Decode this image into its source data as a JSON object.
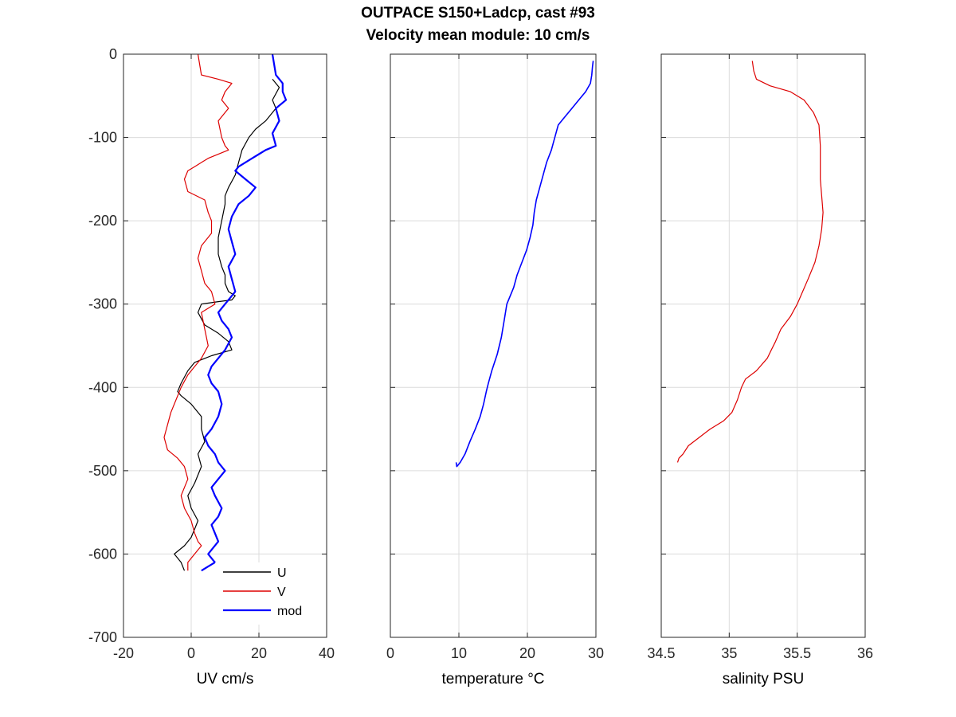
{
  "figure": {
    "title_line1": "OUTPACE S150+Ladcp, cast #93",
    "title_line2": "Velocity mean module:  10 cm/s"
  },
  "chart_data": [
    {
      "type": "line",
      "xlabel": "UV cm/s",
      "ylabel": "",
      "xlim": [
        -20,
        40
      ],
      "ylim": [
        -700,
        0
      ],
      "xticks": [
        -20,
        0,
        20,
        40
      ],
      "xtick_labels": [
        "-20",
        "0",
        "20",
        "40"
      ],
      "yticks": [
        0,
        -100,
        -200,
        -300,
        -400,
        -500,
        -600,
        -700
      ],
      "ytick_labels": [
        "0",
        "-100",
        "-200",
        "-300",
        "-400",
        "-500",
        "-600",
        "-700"
      ],
      "grid": true,
      "legend_position": "bottom-right",
      "series": [
        {
          "name": "U",
          "color": "#000000",
          "x": [
            24,
            26,
            24,
            25,
            22,
            19,
            17,
            15,
            14,
            13,
            11,
            10,
            10,
            9,
            8,
            8,
            9,
            10,
            10,
            11,
            13,
            12,
            8,
            3,
            2,
            4,
            8,
            11,
            12,
            6,
            1,
            -1,
            -3,
            -4,
            -3,
            0,
            3,
            3,
            4,
            2,
            3,
            1,
            -1,
            0,
            2,
            1,
            0,
            -2,
            -5,
            -3,
            -2
          ],
          "y": [
            -30,
            -40,
            -55,
            -65,
            -80,
            -90,
            -100,
            -115,
            -130,
            -145,
            -160,
            -170,
            -180,
            -200,
            -220,
            -240,
            -255,
            -265,
            -275,
            -285,
            -290,
            -295,
            -297,
            -300,
            -310,
            -325,
            -335,
            -345,
            -355,
            -362,
            -370,
            -380,
            -395,
            -405,
            -410,
            -420,
            -435,
            -450,
            -465,
            -480,
            -495,
            -515,
            -530,
            -545,
            -560,
            -570,
            -580,
            -590,
            -600,
            -610,
            -620
          ]
        },
        {
          "name": "V",
          "color": "#dd0000",
          "x": [
            2,
            3,
            8,
            12,
            10,
            9,
            11,
            8,
            9,
            10,
            11,
            5,
            1,
            -1,
            -2,
            -1,
            4,
            5,
            6,
            6,
            3,
            2,
            3,
            4,
            6,
            7,
            3,
            4,
            5,
            3,
            1,
            -1,
            -3,
            -6,
            -8,
            -7,
            -4,
            -2,
            -1,
            -3,
            -2,
            0,
            1,
            2,
            3,
            1,
            -1,
            -1
          ],
          "y": [
            0,
            -25,
            -30,
            -35,
            -45,
            -55,
            -65,
            -80,
            -100,
            -110,
            -115,
            -125,
            -135,
            -140,
            -150,
            -165,
            -175,
            -190,
            -200,
            -215,
            -230,
            -245,
            -260,
            -275,
            -285,
            -300,
            -310,
            -330,
            -350,
            -365,
            -375,
            -385,
            -400,
            -430,
            -460,
            -475,
            -485,
            -495,
            -510,
            -530,
            -545,
            -560,
            -575,
            -585,
            -590,
            -600,
            -610,
            -620
          ]
        },
        {
          "name": "mod",
          "color": "#0000ff",
          "x": [
            24,
            25,
            27,
            27,
            28,
            25,
            26,
            24,
            25,
            22,
            20,
            18,
            16,
            14,
            13,
            16,
            19,
            17,
            14,
            12,
            11,
            12,
            13,
            11,
            12,
            13,
            12,
            10,
            8,
            9,
            11,
            12,
            10,
            8,
            6,
            5,
            6,
            8,
            9,
            8,
            6,
            4,
            5,
            7,
            8,
            10,
            8,
            6,
            7,
            9,
            8,
            6,
            7,
            8,
            6,
            5,
            6,
            7,
            5,
            3,
            3
          ],
          "y": [
            0,
            -25,
            -35,
            -45,
            -55,
            -65,
            -80,
            -95,
            -110,
            -115,
            -120,
            -125,
            -130,
            -135,
            -140,
            -150,
            -160,
            -170,
            -180,
            -195,
            -210,
            -225,
            -240,
            -255,
            -270,
            -285,
            -290,
            -300,
            -310,
            -320,
            -330,
            -340,
            -355,
            -365,
            -375,
            -385,
            -395,
            -405,
            -420,
            -435,
            -450,
            -460,
            -470,
            -480,
            -490,
            -500,
            -510,
            -520,
            -530,
            -545,
            -555,
            -565,
            -575,
            -585,
            -595,
            -600,
            -605,
            -610,
            -615,
            -620,
            -620
          ]
        }
      ]
    },
    {
      "type": "line",
      "xlabel": "temperature °C",
      "xlim": [
        0,
        30
      ],
      "ylim": [
        -700,
        0
      ],
      "xticks": [
        0,
        10,
        20,
        30
      ],
      "xtick_labels": [
        "0",
        "10",
        "20",
        "30"
      ],
      "yticks": [
        0,
        -100,
        -200,
        -300,
        -400,
        -500,
        -600,
        -700
      ],
      "grid": true,
      "series": [
        {
          "name": "",
          "color": "#0000ff",
          "x": [
            29.6,
            29.5,
            29.4,
            29.2,
            28.5,
            27.5,
            26.5,
            25.5,
            24.5,
            24.0,
            23.5,
            22.8,
            22.3,
            21.8,
            21.3,
            21.0,
            20.8,
            20.4,
            19.9,
            19.2,
            18.5,
            18.0,
            17.5,
            17.0,
            16.6,
            16.2,
            15.6,
            14.8,
            14.3,
            14.0,
            13.6,
            13.1,
            12.4,
            11.6,
            10.9,
            10.2,
            9.7,
            9.6
          ],
          "y": [
            -8,
            -15,
            -25,
            -35,
            -45,
            -55,
            -65,
            -75,
            -85,
            -100,
            -115,
            -130,
            -145,
            -160,
            -175,
            -190,
            -205,
            -220,
            -235,
            -250,
            -265,
            -280,
            -290,
            -300,
            -320,
            -340,
            -360,
            -380,
            -395,
            -405,
            -420,
            -435,
            -450,
            -465,
            -480,
            -490,
            -495,
            -490
          ]
        }
      ]
    },
    {
      "type": "line",
      "xlabel": "salinity PSU",
      "xlim": [
        34.5,
        36
      ],
      "ylim": [
        -700,
        0
      ],
      "xticks": [
        34.5,
        35,
        35.5,
        36
      ],
      "xtick_labels": [
        "34.5",
        "35",
        "35.5",
        "36"
      ],
      "yticks": [
        0,
        -100,
        -200,
        -300,
        -400,
        -500,
        -600,
        -700
      ],
      "grid": true,
      "series": [
        {
          "name": "",
          "color": "#dd0000",
          "x": [
            35.17,
            35.18,
            35.2,
            35.3,
            35.45,
            35.55,
            35.62,
            35.66,
            35.67,
            35.67,
            35.67,
            35.68,
            35.69,
            35.68,
            35.66,
            35.63,
            35.58,
            35.54,
            35.5,
            35.45,
            35.38,
            35.34,
            35.31,
            35.28,
            35.2,
            35.12,
            35.09,
            35.06,
            35.02,
            34.96,
            34.86,
            34.78,
            34.7,
            34.66,
            34.63,
            34.62
          ],
          "y": [
            -8,
            -20,
            -30,
            -38,
            -45,
            -55,
            -70,
            -85,
            -110,
            -130,
            -150,
            -170,
            -190,
            -210,
            -230,
            -250,
            -270,
            -285,
            -300,
            -315,
            -330,
            -345,
            -355,
            -365,
            -380,
            -390,
            -400,
            -415,
            -430,
            -440,
            -450,
            -460,
            -470,
            -480,
            -485,
            -490
          ]
        }
      ]
    }
  ]
}
